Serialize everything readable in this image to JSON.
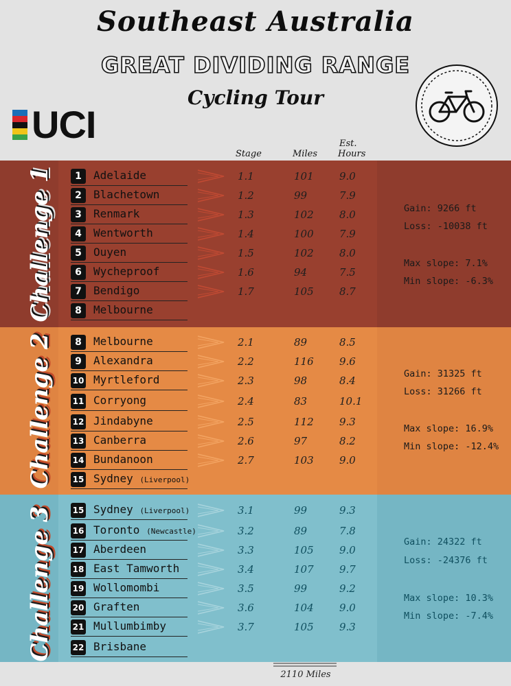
{
  "title": "Southeast Australia",
  "subtitle": "GREAT DIVIDING RANGE",
  "tagline": "Cycling Tour",
  "logo_text": "UCI",
  "logo_icon": "bicycle-icon",
  "headers": {
    "stage": "Stage",
    "miles": "Miles",
    "est": "Est.",
    "hours": "Hours"
  },
  "colors": {
    "challenge1": "#8f3c2d",
    "challenge2": "#df8442",
    "challenge3": "#75b6c4",
    "background": "#e3e3e3"
  },
  "challenges": [
    {
      "label": "Challenge 1",
      "gain": "Gain: 9266 ft",
      "loss": "Loss: -10038 ft",
      "max_slope": "Max slope: 7.1%",
      "min_slope": "Min slope: -6.3%",
      "stages": [
        {
          "num": "1",
          "city": "Adelaide",
          "suffix": "",
          "stage": "1.1",
          "miles": "101",
          "hours": "9.0"
        },
        {
          "num": "2",
          "city": "Blachetown",
          "suffix": "",
          "stage": "1.2",
          "miles": "99",
          "hours": "7.9"
        },
        {
          "num": "3",
          "city": "Renmark",
          "suffix": "",
          "stage": "1.3",
          "miles": "102",
          "hours": "8.0"
        },
        {
          "num": "4",
          "city": "Wentworth",
          "suffix": "",
          "stage": "1.4",
          "miles": "100",
          "hours": "7.9"
        },
        {
          "num": "5",
          "city": "Ouyen",
          "suffix": "",
          "stage": "1.5",
          "miles": "102",
          "hours": "8.0"
        },
        {
          "num": "6",
          "city": "Wycheproof",
          "suffix": "",
          "stage": "1.6",
          "miles": "94",
          "hours": "7.5"
        },
        {
          "num": "7",
          "city": "Bendigo",
          "suffix": "",
          "stage": "1.7",
          "miles": "105",
          "hours": "8.7"
        },
        {
          "num": "8",
          "city": "Melbourne",
          "suffix": ""
        }
      ]
    },
    {
      "label": "Challenge 2",
      "gain": "Gain: 31325 ft",
      "loss": "Loss: 31266 ft",
      "max_slope": "Max slope: 16.9%",
      "min_slope": "Min slope: -12.4%",
      "stages": [
        {
          "num": "8",
          "city": "Melbourne",
          "suffix": "",
          "stage": "2.1",
          "miles": "89",
          "hours": "8.5"
        },
        {
          "num": "9",
          "city": "Alexandra",
          "suffix": "",
          "stage": "2.2",
          "miles": "116",
          "hours": "9.6"
        },
        {
          "num": "10",
          "city": "Myrtleford",
          "suffix": "",
          "stage": "2.3",
          "miles": "98",
          "hours": "8.4"
        },
        {
          "num": "11",
          "city": "Corryong",
          "suffix": "",
          "stage": "2.4",
          "miles": "83",
          "hours": "10.1"
        },
        {
          "num": "12",
          "city": "Jindabyne",
          "suffix": "",
          "stage": "2.5",
          "miles": "112",
          "hours": "9.3"
        },
        {
          "num": "13",
          "city": "Canberra",
          "suffix": "",
          "stage": "2.6",
          "miles": "97",
          "hours": "8.2"
        },
        {
          "num": "14",
          "city": "Bundanoon",
          "suffix": "",
          "stage": "2.7",
          "miles": "103",
          "hours": "9.0"
        },
        {
          "num": "15",
          "city": "Sydney",
          "suffix": "(Liverpool)"
        }
      ]
    },
    {
      "label": "Challenge 3",
      "gain": "Gain: 24322 ft",
      "loss": "Loss: -24376 ft",
      "max_slope": "Max slope: 10.3%",
      "min_slope": "Min slope: -7.4%",
      "stages": [
        {
          "num": "15",
          "city": "Sydney",
          "suffix": "(Liverpool)",
          "stage": "3.1",
          "miles": "99",
          "hours": "9.3"
        },
        {
          "num": "16",
          "city": "Toronto",
          "suffix": "(Newcastle)",
          "stage": "3.2",
          "miles": "89",
          "hours": "7.8"
        },
        {
          "num": "17",
          "city": "Aberdeen",
          "suffix": "",
          "stage": "3.3",
          "miles": "105",
          "hours": "9.0"
        },
        {
          "num": "18",
          "city": "East Tamworth",
          "suffix": "",
          "stage": "3.4",
          "miles": "107",
          "hours": "9.7"
        },
        {
          "num": "19",
          "city": "Wollomombi",
          "suffix": "",
          "stage": "3.5",
          "miles": "99",
          "hours": "9.2"
        },
        {
          "num": "20",
          "city": "Graften",
          "suffix": "",
          "stage": "3.6",
          "miles": "104",
          "hours": "9.0"
        },
        {
          "num": "21",
          "city": "Mullumbimby",
          "suffix": "",
          "stage": "3.7",
          "miles": "105",
          "hours": "9.3"
        },
        {
          "num": "22",
          "city": "Brisbane",
          "suffix": ""
        }
      ]
    }
  ],
  "total": "2110 Miles"
}
